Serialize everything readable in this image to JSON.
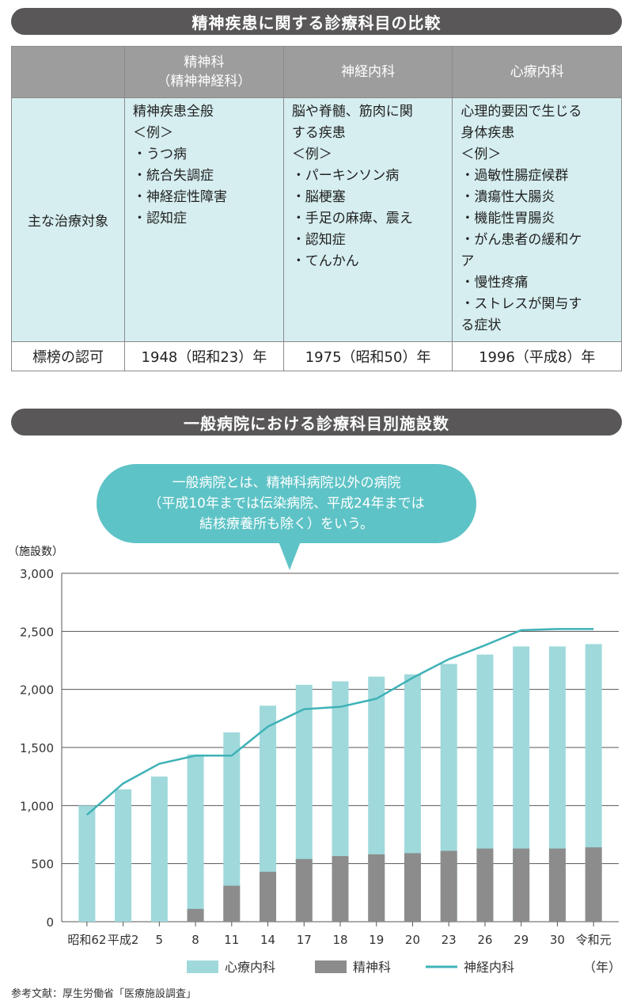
{
  "section1": {
    "title": "精神疾患に関する診療科目の比較",
    "headers": [
      "精神科\n（精神神経科）",
      "神経内科",
      "心療内科"
    ],
    "row_target_label": "主な治療対象",
    "targets": [
      [
        "精神疾患全般",
        "＜例＞",
        "・うつ病",
        "・統合失調症",
        "・神経症性障害",
        "・認知症"
      ],
      [
        "脳や脊髄、筋肉に関",
        "する疾患",
        "＜例＞",
        "・パーキンソン病",
        "・脳梗塞",
        "・手足の麻痺、震え",
        "・認知症",
        "・てんかん"
      ],
      [
        "心理的要因で生じる",
        "身体疾患",
        "＜例＞",
        "・過敏性腸症候群",
        "・潰瘍性大腸炎",
        "・機能性胃腸炎",
        "・がん患者の緩和ケ",
        "ア",
        "・慢性疼痛",
        "・ストレスが関与す",
        "る症状"
      ]
    ],
    "row_year_label": "標榜の認可",
    "years": [
      "1948（昭和23）年",
      "1975（昭和50）年",
      "1996（平成8）年"
    ]
  },
  "section2": {
    "title": "一般病院における診療科目別施設数",
    "callout": [
      "一般病院とは、精神科病院以外の病院",
      "（平成10年までは伝染病院、平成24年までは",
      "結核療養所も除く）をいう。"
    ],
    "y_unit": "（施設数）",
    "x_unit": "（年）"
  },
  "chart_data": {
    "type": "bar",
    "categories": [
      "昭和62",
      "平成2",
      "5",
      "8",
      "11",
      "14",
      "17",
      "18",
      "19",
      "20",
      "23",
      "26",
      "29",
      "30",
      "令和元"
    ],
    "series": [
      {
        "name": "精神科",
        "kind": "bar-bottom",
        "color": "#8c8c8c",
        "values": [
          0,
          0,
          0,
          110,
          310,
          430,
          540,
          565,
          580,
          590,
          610,
          630,
          630,
          630,
          640
        ]
      },
      {
        "name": "心療内科",
        "kind": "bar-top",
        "color": "#9fd9dc",
        "values": [
          1000,
          1140,
          1250,
          1440,
          1630,
          1860,
          2040,
          2070,
          2110,
          2130,
          2220,
          2300,
          2370,
          2370,
          2390
        ]
      },
      {
        "name": "神経内科",
        "kind": "line",
        "color": "#3fb2b7",
        "values": [
          920,
          1190,
          1360,
          1430,
          1430,
          1680,
          1830,
          1850,
          1920,
          2100,
          2260,
          2380,
          2510,
          2520,
          2520
        ]
      }
    ],
    "stack_note": "心療内科 values are bar totals; 精神科 is the bottom segment",
    "ylim": [
      0,
      3000
    ],
    "yticks": [
      "0",
      "500",
      "1,000",
      "1,500",
      "2,000",
      "2,500",
      "3,000"
    ],
    "ytick_values": [
      0,
      500,
      1000,
      1500,
      2000,
      2500,
      3000
    ],
    "grid": true,
    "legend_position": "bottom"
  },
  "source": "参考文献：厚生労働省「医療施設調査」"
}
